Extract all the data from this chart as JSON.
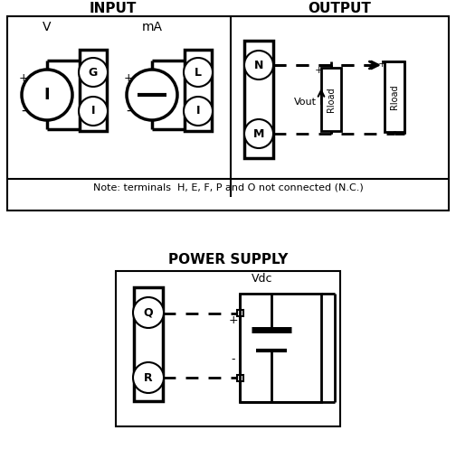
{
  "bg_color": "#ffffff",
  "lc": "#000000",
  "input_label": "INPUT",
  "output_label": "OUTPUT",
  "power_label": "POWER SUPPLY",
  "note_text": "Note: terminals  H, E, F, P and O not connected (N.C.)",
  "V_label": "V",
  "mA_label": "mA",
  "Vout_label": "Vout",
  "Vdc_label": "Vdc",
  "G_label": "G",
  "L_label": "L",
  "I_label": "I",
  "I_label2": "I",
  "I_label3": "I",
  "N_label": "N",
  "M_label": "M",
  "Rload_label": "Rload",
  "Q_label": "Q",
  "R_label": "R",
  "plus": "+",
  "minus": "-"
}
